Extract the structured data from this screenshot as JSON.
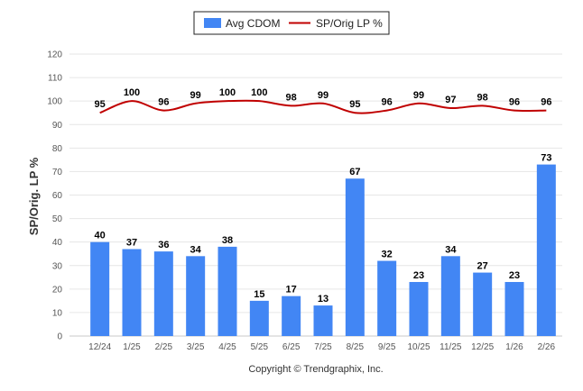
{
  "chart_data": {
    "type": "bar",
    "categories": [
      "12/24",
      "1/25",
      "2/25",
      "3/25",
      "4/25",
      "5/25",
      "6/25",
      "7/25",
      "8/25",
      "9/25",
      "10/25",
      "11/25",
      "12/25",
      "1/26",
      "2/26"
    ],
    "series": [
      {
        "name": "Avg CDOM",
        "type": "bar",
        "color": "#4286f4",
        "values": [
          40,
          37,
          36,
          34,
          38,
          15,
          17,
          13,
          67,
          32,
          23,
          34,
          27,
          23,
          73
        ]
      },
      {
        "name": "SP/Orig LP %",
        "type": "line",
        "color": "#c00000",
        "values": [
          95,
          100,
          96,
          99,
          100,
          100,
          98,
          99,
          95,
          96,
          99,
          97,
          98,
          96,
          96
        ]
      }
    ],
    "ylabel": "SP/Orig. LP %",
    "xlabel": "",
    "ylim": [
      0,
      120
    ],
    "yticks": [
      0,
      10,
      20,
      30,
      40,
      50,
      60,
      70,
      80,
      90,
      100,
      110,
      120
    ],
    "grid": true,
    "legend": "top-center",
    "footer": "Copyright © Trendgraphix, Inc."
  }
}
